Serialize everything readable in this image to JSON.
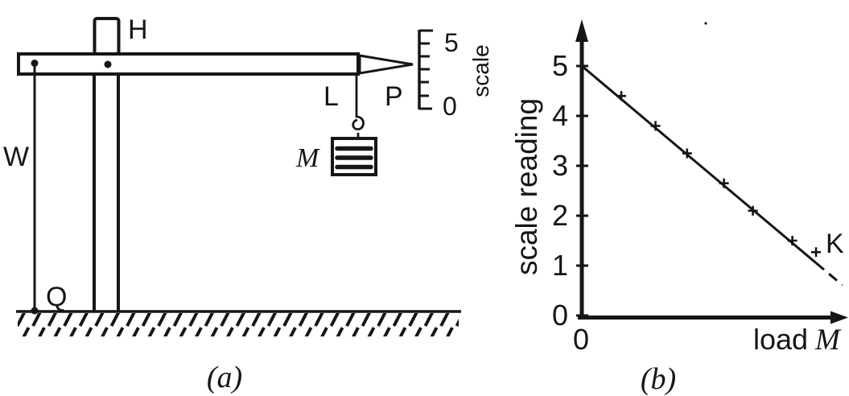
{
  "colors": {
    "ink": "#161616",
    "background": "#ffffff"
  },
  "apparatus": {
    "labels": {
      "pivot_block": "H",
      "counterweight": "W",
      "base_point": "Q",
      "string_point": "L",
      "pointer": "P",
      "load_mass": "M"
    },
    "scale": {
      "word": "scale",
      "top_tick_label": "5",
      "bottom_tick_label": "0"
    }
  },
  "captions": {
    "a": "(a)",
    "b": "(b)"
  },
  "chart_data": {
    "type": "scatter",
    "title": "",
    "xlabel": "load M",
    "xlabel_plain": "load",
    "xlabel_italic": "M",
    "ylabel": "scale reading",
    "x_tick_labels": [
      "0"
    ],
    "x_axis_numeric": false,
    "y_ticks": [
      0,
      1,
      2,
      3,
      4,
      5
    ],
    "ylim": [
      0,
      5.6
    ],
    "grid": false,
    "legend": null,
    "fit_line": {
      "x1": 0,
      "y1": 5.0,
      "x2": 0.99,
      "y2": 0.61,
      "dashed_from_x": 0.89
    },
    "points": [
      {
        "x": 0.15,
        "y": 4.4
      },
      {
        "x": 0.28,
        "y": 3.8
      },
      {
        "x": 0.4,
        "y": 3.25
      },
      {
        "x": 0.54,
        "y": 2.65
      },
      {
        "x": 0.65,
        "y": 2.1
      },
      {
        "x": 0.8,
        "y": 1.5
      }
    ],
    "outlier": {
      "x": 0.89,
      "y": 1.27,
      "label": "K"
    }
  }
}
